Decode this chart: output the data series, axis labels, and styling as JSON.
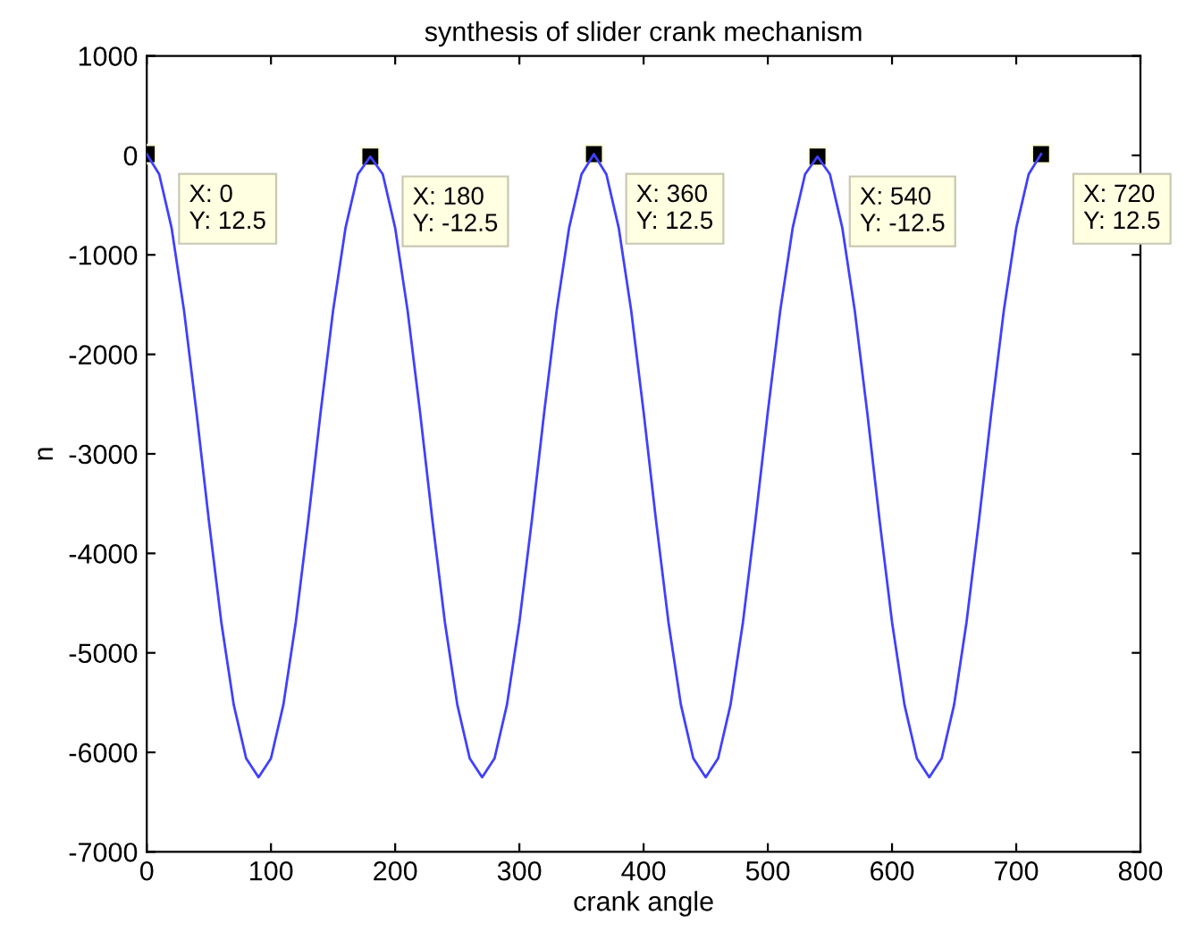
{
  "chart_data": {
    "type": "line",
    "title": "synthesis of slider crank mechanism",
    "xlabel": "crank angle",
    "ylabel": "n",
    "xlim": [
      0,
      800
    ],
    "xticks": [
      0,
      100,
      200,
      300,
      400,
      500,
      600,
      700,
      800
    ],
    "ylim": [
      -7000,
      1000
    ],
    "yticks": [
      -7000,
      -6000,
      -5000,
      -4000,
      -3000,
      -2000,
      -1000,
      0,
      1000
    ],
    "grid": false,
    "legend": false,
    "series": [
      {
        "color": "#4040ff",
        "line_style": "solid",
        "marker": "none",
        "x": [
          0,
          10,
          20,
          30,
          40,
          50,
          60,
          70,
          80,
          90,
          100,
          110,
          120,
          130,
          140,
          150,
          160,
          170,
          180,
          190,
          200,
          210,
          220,
          230,
          240,
          250,
          260,
          270,
          280,
          290,
          300,
          310,
          320,
          330,
          340,
          350,
          360,
          370,
          380,
          390,
          400,
          410,
          420,
          430,
          440,
          450,
          460,
          470,
          480,
          490,
          500,
          510,
          520,
          530,
          540,
          550,
          560,
          570,
          580,
          590,
          600,
          610,
          620,
          630,
          640,
          650,
          660,
          670,
          680,
          690,
          700,
          710,
          720
        ],
        "values": [
          12.5,
          -190,
          -730,
          -1560,
          -2580,
          -3670,
          -4690,
          -5520,
          -6060,
          -6250,
          -6060,
          -5520,
          -4690,
          -3670,
          -2580,
          -1560,
          -730,
          -190,
          -12.5,
          -190,
          -730,
          -1560,
          -2580,
          -3670,
          -4690,
          -5520,
          -6060,
          -6250,
          -6060,
          -5520,
          -4690,
          -3670,
          -2580,
          -1560,
          -730,
          -190,
          12.5,
          -190,
          -730,
          -1560,
          -2580,
          -3670,
          -4690,
          -5520,
          -6060,
          -6250,
          -6060,
          -5520,
          -4690,
          -3670,
          -2580,
          -1560,
          -730,
          -190,
          -12.5,
          -190,
          -730,
          -1560,
          -2580,
          -3670,
          -4690,
          -5520,
          -6060,
          -6250,
          -6060,
          -5520,
          -4690,
          -3670,
          -2580,
          -1560,
          -730,
          -190,
          12.5
        ]
      },
      {
        "type": "scatter",
        "color": "#000000",
        "marker": "square",
        "x": [
          0,
          180,
          360,
          540,
          720
        ],
        "values": [
          12.5,
          -12.5,
          12.5,
          -12.5,
          12.5
        ]
      }
    ],
    "annotations": [
      {
        "text": "X: 0\nY: 12.5",
        "x": 0,
        "y": 12.5
      },
      {
        "text": "X: 180\nY: -12.5",
        "x": 180,
        "y": -12.5
      },
      {
        "text": "X: 360\nY: 12.5",
        "x": 360,
        "y": 12.5
      },
      {
        "text": "X: 540\nY: -12.5",
        "x": 540,
        "y": -12.5
      },
      {
        "text": "X: 720\nY: 12.5",
        "x": 720,
        "y": 12.5
      }
    ]
  }
}
